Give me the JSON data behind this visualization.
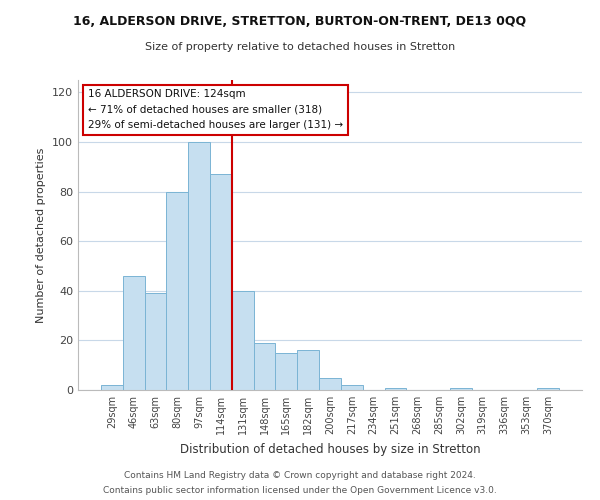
{
  "title": "16, ALDERSON DRIVE, STRETTON, BURTON-ON-TRENT, DE13 0QQ",
  "subtitle": "Size of property relative to detached houses in Stretton",
  "xlabel": "Distribution of detached houses by size in Stretton",
  "ylabel": "Number of detached properties",
  "bar_labels": [
    "29sqm",
    "46sqm",
    "63sqm",
    "80sqm",
    "97sqm",
    "114sqm",
    "131sqm",
    "148sqm",
    "165sqm",
    "182sqm",
    "200sqm",
    "217sqm",
    "234sqm",
    "251sqm",
    "268sqm",
    "285sqm",
    "302sqm",
    "319sqm",
    "336sqm",
    "353sqm",
    "370sqm"
  ],
  "bar_values": [
    2,
    46,
    39,
    80,
    100,
    87,
    40,
    19,
    15,
    16,
    5,
    2,
    0,
    1,
    0,
    0,
    1,
    0,
    0,
    0,
    1
  ],
  "bar_color": "#c6dff0",
  "bar_edge_color": "#7ab4d4",
  "vline_x": 5.5,
  "vline_color": "#cc0000",
  "ylim": [
    0,
    125
  ],
  "yticks": [
    0,
    20,
    40,
    60,
    80,
    100,
    120
  ],
  "annotation_title": "16 ALDERSON DRIVE: 124sqm",
  "annotation_line1": "← 71% of detached houses are smaller (318)",
  "annotation_line2": "29% of semi-detached houses are larger (131) →",
  "annotation_box_color": "#ffffff",
  "annotation_box_edge": "#cc0000",
  "footer_line1": "Contains HM Land Registry data © Crown copyright and database right 2024.",
  "footer_line2": "Contains public sector information licensed under the Open Government Licence v3.0.",
  "background_color": "#ffffff",
  "grid_color": "#c8d8e8"
}
